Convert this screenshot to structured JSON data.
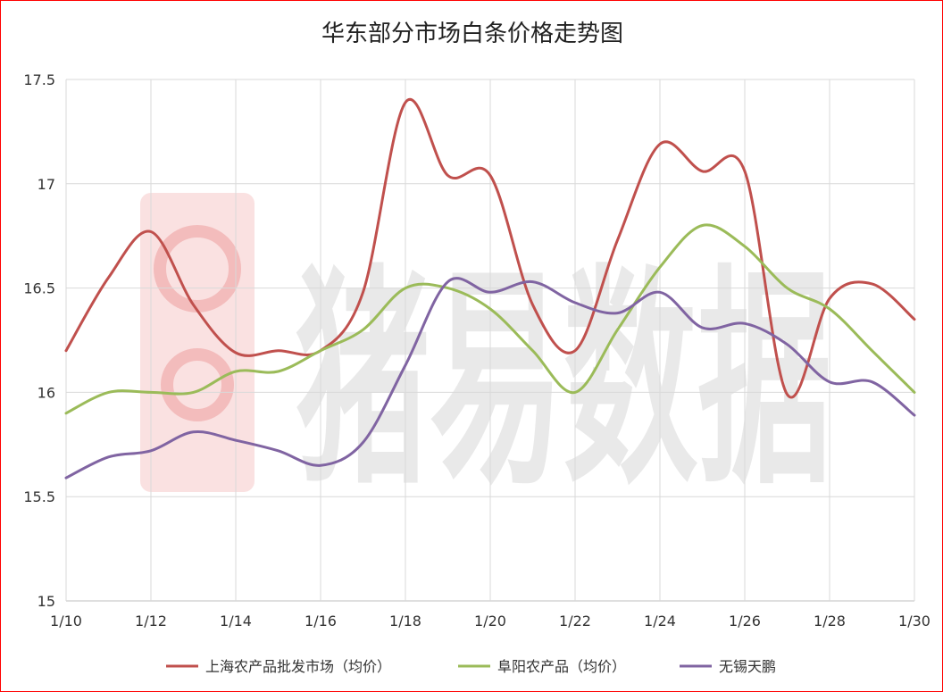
{
  "chart_data": {
    "type": "line",
    "title": "华东部分市场白条价格走势图",
    "xlabel": "",
    "ylabel": "",
    "watermark": "猪易数据",
    "ylim": [
      15,
      17.5
    ],
    "yticks": [
      15,
      15.5,
      16,
      16.5,
      17,
      17.5
    ],
    "ytick_labels": [
      "15",
      "15.5",
      "16",
      "16.5",
      "17",
      "17.5"
    ],
    "x": [
      "1/10",
      "1/11",
      "1/12",
      "1/13",
      "1/14",
      "1/15",
      "1/16",
      "1/17",
      "1/18",
      "1/19",
      "1/20",
      "1/21",
      "1/22",
      "1/23",
      "1/24",
      "1/25",
      "1/26",
      "1/27",
      "1/28",
      "1/29",
      "1/30"
    ],
    "xtick_labels": [
      "1/10",
      "1/12",
      "1/14",
      "1/16",
      "1/18",
      "1/20",
      "1/22",
      "1/24",
      "1/26",
      "1/28",
      "1/30"
    ],
    "grid": true,
    "legend_position": "bottom",
    "series": [
      {
        "name": "上海农产品批发市场（均价）",
        "color": "#c0504d",
        "values": [
          16.2,
          16.55,
          16.77,
          16.42,
          16.19,
          16.2,
          16.2,
          16.48,
          17.39,
          17.04,
          17.04,
          16.42,
          16.2,
          16.73,
          17.19,
          17.06,
          17.06,
          15.99,
          16.45,
          16.52,
          16.35
        ]
      },
      {
        "name": "阜阳农产品（均价）",
        "color": "#9bbb59",
        "values": [
          15.9,
          16.0,
          16.0,
          16.0,
          16.1,
          16.1,
          16.2,
          16.3,
          16.5,
          16.5,
          16.4,
          16.2,
          16.0,
          16.3,
          16.6,
          16.8,
          16.7,
          16.5,
          16.4,
          16.2,
          16.0
        ]
      },
      {
        "name": "无锡天鹏",
        "color": "#8064a2",
        "values": [
          15.59,
          15.69,
          15.72,
          15.81,
          15.77,
          15.72,
          15.65,
          15.76,
          16.13,
          16.53,
          16.48,
          16.53,
          16.43,
          16.38,
          16.48,
          16.31,
          16.33,
          16.23,
          16.05,
          16.05,
          15.89
        ]
      }
    ]
  }
}
